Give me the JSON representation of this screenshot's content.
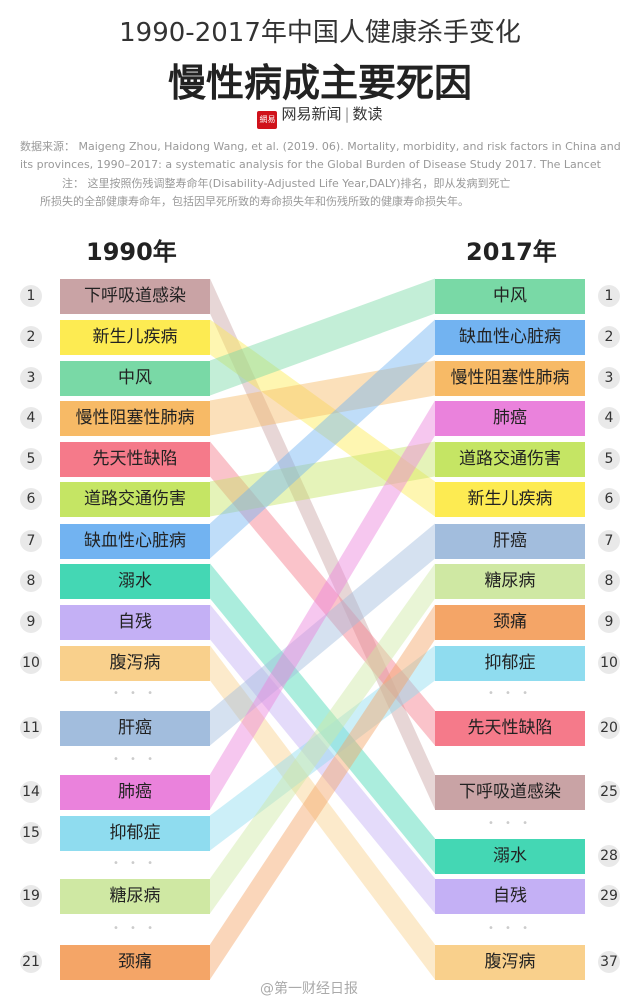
{
  "title_line1": "1990-2017年中国人健康杀手变化",
  "title_line2": "慢性病成主要死因",
  "brand": {
    "logo": "網易",
    "name": "网易新闻",
    "sep": "|",
    "sub": "数读"
  },
  "source_lines": [
    "数据来源：  Maigeng Zhou, Haidong Wang, et al. (2019. 06). Mortality, morbidity, and risk factors in China and",
    "its provinces, 1990–2017: a systematic analysis for the Global Burden of Disease Study 2017. The Lancet",
    "注：  这里按照伤残调整寿命年(Disability-Adjusted Life Year,DALY)排名，即从发病到死亡",
    "所损失的全部健康寿命年，包括因早死所致的寿命损失年和伤残所致的健康寿命损失年。"
  ],
  "watermark": "@第一财经日报",
  "chart_data": {
    "type": "slope-ranking",
    "left_label": "1990年",
    "right_label": "2017年",
    "left": [
      {
        "rank": 1,
        "name": "下呼吸道感染",
        "color": "#c9a3a5"
      },
      {
        "rank": 2,
        "name": "新生儿疾病",
        "color": "#fdeb52"
      },
      {
        "rank": 3,
        "name": "中风",
        "color": "#79d9a6"
      },
      {
        "rank": 4,
        "name": "慢性阻塞性肺病",
        "color": "#f7ba66"
      },
      {
        "rank": 5,
        "name": "先天性缺陷",
        "color": "#f57a8a"
      },
      {
        "rank": 6,
        "name": "道路交通伤害",
        "color": "#c5e564"
      },
      {
        "rank": 7,
        "name": "缺血性心脏病",
        "color": "#72b3f1"
      },
      {
        "rank": 8,
        "name": "溺水",
        "color": "#44d7b4"
      },
      {
        "rank": 9,
        "name": "自残",
        "color": "#c4b0f5"
      },
      {
        "rank": 10,
        "name": "腹泻病",
        "color": "#f9d08c"
      },
      {
        "rank": 11,
        "name": "肝癌",
        "color": "#a2bddd"
      },
      {
        "rank": 14,
        "name": "肺癌",
        "color": "#ea82dc"
      },
      {
        "rank": 15,
        "name": "抑郁症",
        "color": "#8fdcef"
      },
      {
        "rank": 19,
        "name": "糖尿病",
        "color": "#cfe8a3"
      },
      {
        "rank": 21,
        "name": "颈痛",
        "color": "#f4a567"
      }
    ],
    "right": [
      {
        "rank": 1,
        "name": "中风",
        "color": "#79d9a6"
      },
      {
        "rank": 2,
        "name": "缺血性心脏病",
        "color": "#72b3f1"
      },
      {
        "rank": 3,
        "name": "慢性阻塞性肺病",
        "color": "#f7ba66"
      },
      {
        "rank": 4,
        "name": "肺癌",
        "color": "#ea82dc"
      },
      {
        "rank": 5,
        "name": "道路交通伤害",
        "color": "#c5e564"
      },
      {
        "rank": 6,
        "name": "新生儿疾病",
        "color": "#fdeb52"
      },
      {
        "rank": 7,
        "name": "肝癌",
        "color": "#a2bddd"
      },
      {
        "rank": 8,
        "name": "糖尿病",
        "color": "#cfe8a3"
      },
      {
        "rank": 9,
        "name": "颈痛",
        "color": "#f4a567"
      },
      {
        "rank": 10,
        "name": "抑郁症",
        "color": "#8fdcef"
      },
      {
        "rank": 20,
        "name": "先天性缺陷",
        "color": "#f57a8a"
      },
      {
        "rank": 25,
        "name": "下呼吸道感染",
        "color": "#c9a3a5"
      },
      {
        "rank": 28,
        "name": "溺水",
        "color": "#44d7b4"
      },
      {
        "rank": 29,
        "name": "自残",
        "color": "#c4b0f5"
      },
      {
        "rank": 37,
        "name": "腹泻病",
        "color": "#f9d08c"
      }
    ],
    "dots": "• • •"
  }
}
